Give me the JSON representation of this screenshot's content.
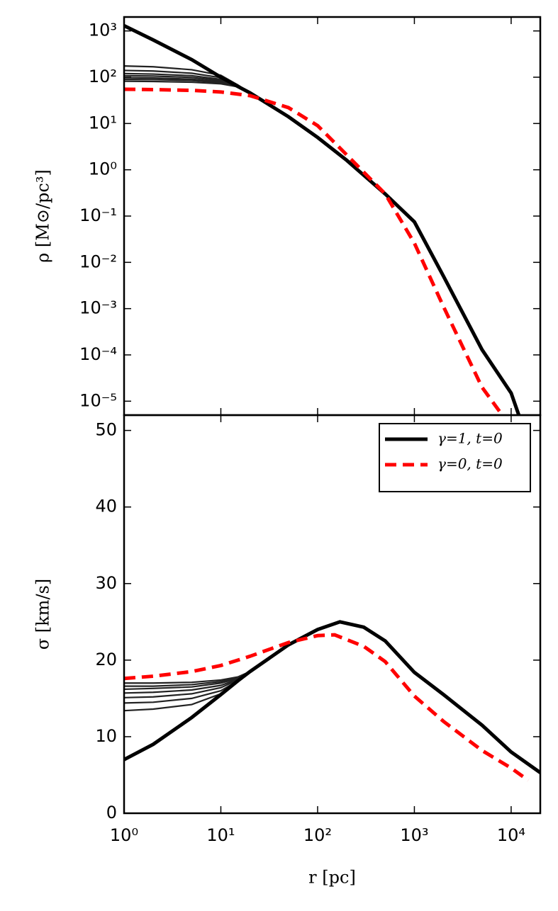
{
  "chart_data": [
    {
      "type": "line",
      "xscale": "log",
      "yscale": "log",
      "ylabel": "ρ [M⊙/pc³]",
      "xlim": [
        1,
        20000
      ],
      "ylim": [
        5e-06,
        2000
      ],
      "yticks": [
        {
          "value": 1000,
          "label": "10³"
        },
        {
          "value": 100,
          "label": "10²"
        },
        {
          "value": 10,
          "label": "10¹"
        },
        {
          "value": 1,
          "label": "10⁰"
        },
        {
          "value": 0.1,
          "label": "10⁻¹"
        },
        {
          "value": 0.01,
          "label": "10⁻²"
        },
        {
          "value": 0.001,
          "label": "10⁻³"
        },
        {
          "value": 0.0001,
          "label": "10⁻⁴"
        },
        {
          "value": 1e-05,
          "label": "10⁻⁵"
        }
      ],
      "series": [
        {
          "color": "#000000",
          "linestyle": "solid",
          "x": [
            1,
            2,
            5,
            10,
            15,
            20,
            50,
            100,
            200,
            500,
            1000,
            2000,
            5000,
            10000,
            12000
          ],
          "values": [
            1300,
            640,
            240,
            100,
            63,
            46,
            14,
            5,
            1.6,
            0.3,
            0.075,
            0.005,
            0.00013,
            1.5e-05,
            5e-06
          ]
        },
        {
          "color": "#ff0000",
          "linestyle": "dashed",
          "x": [
            1,
            2,
            5,
            10,
            20,
            50,
            100,
            200,
            500,
            1000,
            2000,
            5000,
            8100
          ],
          "values": [
            55,
            54,
            52,
            48,
            40,
            22,
            9,
            2.1,
            0.3,
            0.026,
            0.0011,
            2e-05,
            5e-06
          ]
        },
        {
          "color": "#222222",
          "linestyle": "thin",
          "x": [
            1,
            2,
            5,
            10,
            15,
            20
          ],
          "values": [
            175,
            168,
            145,
            110,
            68,
            46
          ]
        },
        {
          "color": "#222222",
          "linestyle": "thin",
          "x": [
            1,
            2,
            5,
            10,
            15,
            20
          ],
          "values": [
            140,
            136,
            122,
            98,
            66,
            46
          ]
        },
        {
          "color": "#222222",
          "linestyle": "thin",
          "x": [
            1,
            2,
            5,
            10,
            15,
            20
          ],
          "values": [
            120,
            117,
            108,
            90,
            65,
            46
          ]
        },
        {
          "color": "#222222",
          "linestyle": "thin",
          "x": [
            1,
            2,
            5,
            10,
            15,
            20
          ],
          "values": [
            108,
            106,
            99,
            85,
            64,
            46
          ]
        },
        {
          "color": "#222222",
          "linestyle": "thin",
          "x": [
            1,
            2,
            5,
            10,
            15,
            20
          ],
          "values": [
            98,
            96,
            91,
            80,
            63,
            46
          ]
        },
        {
          "color": "#222222",
          "linestyle": "thin",
          "x": [
            1,
            2,
            5,
            10,
            15,
            20
          ],
          "values": [
            90,
            89,
            85,
            76,
            63,
            46
          ]
        },
        {
          "color": "#222222",
          "linestyle": "thin",
          "x": [
            1,
            2,
            5,
            10,
            15,
            20
          ],
          "values": [
            82,
            81,
            78,
            72,
            62,
            46
          ]
        }
      ]
    },
    {
      "type": "line",
      "xscale": "log",
      "xlabel": "r [pc]",
      "ylabel": "σ [km/s]",
      "xlim": [
        1,
        20000
      ],
      "ylim": [
        0,
        52
      ],
      "xticks": [
        {
          "value": 1,
          "label": "10⁰"
        },
        {
          "value": 10,
          "label": "10¹"
        },
        {
          "value": 100,
          "label": "10²"
        },
        {
          "value": 1000,
          "label": "10³"
        },
        {
          "value": 10000,
          "label": "10⁴"
        }
      ],
      "yticks": [
        0,
        10,
        20,
        30,
        40,
        50
      ],
      "legend": "upper right",
      "series": [
        {
          "name": "γ=1, t=0",
          "color": "#000000",
          "linestyle": "solid",
          "x": [
            1,
            2,
            5,
            10,
            15,
            20,
            50,
            100,
            170,
            300,
            500,
            1000,
            2000,
            5000,
            10000,
            20000
          ],
          "values": [
            7,
            9,
            12.5,
            15.5,
            17.3,
            18.5,
            22,
            24,
            25,
            24.3,
            22.5,
            18.4,
            15.5,
            11.5,
            8,
            5.3
          ]
        },
        {
          "name": "γ=0, t=0",
          "color": "#ff0000",
          "linestyle": "dashed",
          "x": [
            1,
            2,
            5,
            10,
            20,
            50,
            100,
            150,
            300,
            500,
            1000,
            2000,
            5000,
            10000,
            15000
          ],
          "values": [
            17.6,
            17.9,
            18.5,
            19.3,
            20.5,
            22.3,
            23.2,
            23.3,
            21.8,
            19.8,
            15.3,
            12,
            8.2,
            5.9,
            4.3
          ]
        },
        {
          "color": "#222222",
          "linestyle": "thin",
          "x": [
            1,
            2,
            5,
            10,
            15,
            20
          ],
          "values": [
            17.0,
            17.0,
            17.1,
            17.4,
            17.8,
            18.5
          ]
        },
        {
          "color": "#222222",
          "linestyle": "thin",
          "x": [
            1,
            2,
            5,
            10,
            15,
            20
          ],
          "values": [
            16.6,
            16.6,
            16.8,
            17.2,
            17.7,
            18.5
          ]
        },
        {
          "color": "#222222",
          "linestyle": "thin",
          "x": [
            1,
            2,
            5,
            10,
            15,
            20
          ],
          "values": [
            16.2,
            16.3,
            16.5,
            17.0,
            17.6,
            18.5
          ]
        },
        {
          "color": "#222222",
          "linestyle": "thin",
          "x": [
            1,
            2,
            5,
            10,
            15,
            20
          ],
          "values": [
            15.7,
            15.8,
            16.1,
            16.7,
            17.5,
            18.5
          ]
        },
        {
          "color": "#222222",
          "linestyle": "thin",
          "x": [
            1,
            2,
            5,
            10,
            15,
            20
          ],
          "values": [
            15.1,
            15.2,
            15.6,
            16.4,
            17.4,
            18.5
          ]
        },
        {
          "color": "#222222",
          "linestyle": "thin",
          "x": [
            1,
            2,
            5,
            10,
            15,
            20
          ],
          "values": [
            14.4,
            14.5,
            15.0,
            16.0,
            17.3,
            18.5
          ]
        },
        {
          "color": "#222222",
          "linestyle": "thin",
          "x": [
            1,
            2,
            5,
            10,
            15,
            20
          ],
          "values": [
            13.4,
            13.6,
            14.2,
            15.6,
            17.2,
            18.5
          ]
        }
      ]
    }
  ]
}
